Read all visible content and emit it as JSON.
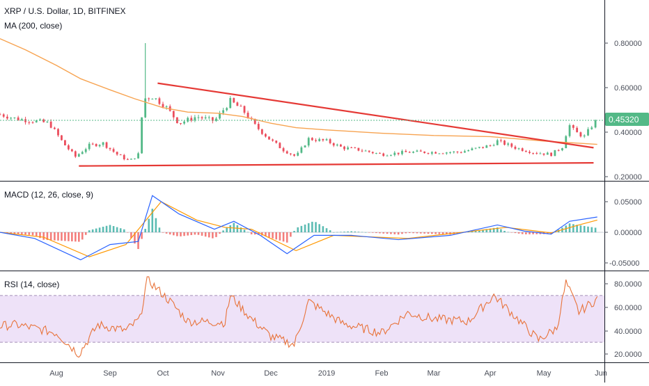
{
  "main_pane": {
    "title": "XRP / U.S. Dollar, 1D, BITFINEX",
    "indicator": "MA (200, close)",
    "price_tag": "0.45320",
    "y_ticks": [
      "0.80000",
      "0.60000",
      "0.40000",
      "0.20000"
    ]
  },
  "macd_pane": {
    "title": "MACD (12, 26, close, 9)",
    "y_ticks": [
      "0.05000",
      "0.00000",
      "-0.05000"
    ]
  },
  "rsi_pane": {
    "title": "RSI (14, close)",
    "y_ticks": [
      "80.0000",
      "60.0000",
      "40.0000",
      "20.0000"
    ]
  },
  "time_axis": {
    "labels": [
      "Aug",
      "Sep",
      "Oct",
      "Nov",
      "Dec",
      "2019",
      "Feb",
      "Mar",
      "Apr",
      "May",
      "Jun"
    ]
  },
  "colors": {
    "up": "#53b987",
    "down": "#eb4d5c",
    "ma": "#f7a350",
    "trendline": "#e53935",
    "macd_line": "#2962ff",
    "signal_line": "#ff9800",
    "hist_up": "#26a69a",
    "hist_down": "#ef5350",
    "rsi_line": "#e8733a",
    "rsi_band": "#e7d6f5",
    "price_tag_bg": "#53b987"
  },
  "chart_data": [
    {
      "type": "candlestick",
      "title": "XRP / U.S. Dollar, 1D, BITFINEX",
      "ylim": [
        0.2,
        0.85
      ],
      "x_range": [
        "2018-07-01",
        "2019-05-30"
      ],
      "price_line": 0.4532,
      "close_path": [
        {
          "x": "2018-07-01",
          "y": 0.48
        },
        {
          "x": "2018-07-10",
          "y": 0.46
        },
        {
          "x": "2018-07-20",
          "y": 0.45
        },
        {
          "x": "2018-07-28",
          "y": 0.44
        },
        {
          "x": "2018-08-05",
          "y": 0.35
        },
        {
          "x": "2018-08-12",
          "y": 0.29
        },
        {
          "x": "2018-08-20",
          "y": 0.34
        },
        {
          "x": "2018-08-28",
          "y": 0.35
        },
        {
          "x": "2018-09-05",
          "y": 0.3
        },
        {
          "x": "2018-09-12",
          "y": 0.27
        },
        {
          "x": "2018-09-17",
          "y": 0.3
        },
        {
          "x": "2018-09-20",
          "y": 0.55
        },
        {
          "x": "2018-09-25",
          "y": 0.56
        },
        {
          "x": "2018-10-02",
          "y": 0.52
        },
        {
          "x": "2018-10-10",
          "y": 0.44
        },
        {
          "x": "2018-10-20",
          "y": 0.47
        },
        {
          "x": "2018-10-30",
          "y": 0.45
        },
        {
          "x": "2018-11-08",
          "y": 0.54
        },
        {
          "x": "2018-11-15",
          "y": 0.5
        },
        {
          "x": "2018-11-22",
          "y": 0.43
        },
        {
          "x": "2018-11-30",
          "y": 0.37
        },
        {
          "x": "2018-12-08",
          "y": 0.32
        },
        {
          "x": "2018-12-15",
          "y": 0.29
        },
        {
          "x": "2018-12-22",
          "y": 0.37
        },
        {
          "x": "2019-01-01",
          "y": 0.36
        },
        {
          "x": "2019-01-10",
          "y": 0.33
        },
        {
          "x": "2019-01-20",
          "y": 0.32
        },
        {
          "x": "2019-02-01",
          "y": 0.3
        },
        {
          "x": "2019-02-15",
          "y": 0.31
        },
        {
          "x": "2019-03-01",
          "y": 0.31
        },
        {
          "x": "2019-03-15",
          "y": 0.31
        },
        {
          "x": "2019-04-01",
          "y": 0.34
        },
        {
          "x": "2019-04-05",
          "y": 0.36
        },
        {
          "x": "2019-04-15",
          "y": 0.33
        },
        {
          "x": "2019-04-25",
          "y": 0.31
        },
        {
          "x": "2019-05-05",
          "y": 0.3
        },
        {
          "x": "2019-05-12",
          "y": 0.34
        },
        {
          "x": "2019-05-14",
          "y": 0.44
        },
        {
          "x": "2019-05-18",
          "y": 0.4
        },
        {
          "x": "2019-05-23",
          "y": 0.38
        },
        {
          "x": "2019-05-28",
          "y": 0.44
        },
        {
          "x": "2019-05-30",
          "y": 0.4532
        }
      ],
      "ma200": [
        {
          "x": "2018-07-01",
          "y": 0.82
        },
        {
          "x": "2018-07-15",
          "y": 0.77
        },
        {
          "x": "2018-08-01",
          "y": 0.7
        },
        {
          "x": "2018-08-15",
          "y": 0.64
        },
        {
          "x": "2018-09-01",
          "y": 0.59
        },
        {
          "x": "2018-09-15",
          "y": 0.55
        },
        {
          "x": "2018-10-01",
          "y": 0.51
        },
        {
          "x": "2018-10-15",
          "y": 0.49
        },
        {
          "x": "2018-11-01",
          "y": 0.485
        },
        {
          "x": "2018-11-15",
          "y": 0.47
        },
        {
          "x": "2018-12-01",
          "y": 0.44
        },
        {
          "x": "2018-12-15",
          "y": 0.42
        },
        {
          "x": "2019-01-01",
          "y": 0.41
        },
        {
          "x": "2019-02-01",
          "y": 0.395
        },
        {
          "x": "2019-03-01",
          "y": 0.385
        },
        {
          "x": "2019-04-01",
          "y": 0.38
        },
        {
          "x": "2019-05-01",
          "y": 0.36
        },
        {
          "x": "2019-05-30",
          "y": 0.345
        }
      ],
      "trendlines": [
        {
          "name": "resistance",
          "points": [
            {
              "x": "2018-09-28",
              "y": 0.62
            },
            {
              "x": "2019-05-28",
              "y": 0.33
            }
          ]
        },
        {
          "name": "support",
          "points": [
            {
              "x": "2018-08-14",
              "y": 0.248
            },
            {
              "x": "2019-05-28",
              "y": 0.262
            }
          ]
        }
      ]
    },
    {
      "type": "line",
      "title": "MACD (12, 26, close, 9)",
      "ylim": [
        -0.06,
        0.08
      ],
      "series": [
        {
          "key": "macd",
          "values": [
            {
              "x": "2018-07-01",
              "y": 0.0
            },
            {
              "x": "2018-07-20",
              "y": -0.01
            },
            {
              "x": "2018-08-15",
              "y": -0.045
            },
            {
              "x": "2018-09-01",
              "y": -0.02
            },
            {
              "x": "2018-09-17",
              "y": -0.015
            },
            {
              "x": "2018-09-25",
              "y": 0.06
            },
            {
              "x": "2018-10-10",
              "y": 0.03
            },
            {
              "x": "2018-10-30",
              "y": 0.005
            },
            {
              "x": "2018-11-10",
              "y": 0.018
            },
            {
              "x": "2018-11-25",
              "y": -0.005
            },
            {
              "x": "2018-12-10",
              "y": -0.035
            },
            {
              "x": "2018-12-25",
              "y": -0.005
            },
            {
              "x": "2019-01-15",
              "y": -0.005
            },
            {
              "x": "2019-02-10",
              "y": -0.012
            },
            {
              "x": "2019-03-10",
              "y": -0.005
            },
            {
              "x": "2019-04-05",
              "y": 0.012
            },
            {
              "x": "2019-04-20",
              "y": 0.002
            },
            {
              "x": "2019-05-05",
              "y": -0.003
            },
            {
              "x": "2019-05-15",
              "y": 0.018
            },
            {
              "x": "2019-05-30",
              "y": 0.025
            }
          ]
        },
        {
          "key": "signal",
          "values": [
            {
              "x": "2018-07-01",
              "y": 0.0
            },
            {
              "x": "2018-07-25",
              "y": -0.008
            },
            {
              "x": "2018-08-20",
              "y": -0.04
            },
            {
              "x": "2018-09-10",
              "y": -0.02
            },
            {
              "x": "2018-09-30",
              "y": 0.05
            },
            {
              "x": "2018-10-20",
              "y": 0.02
            },
            {
              "x": "2018-11-05",
              "y": 0.008
            },
            {
              "x": "2018-11-20",
              "y": 0.005
            },
            {
              "x": "2018-12-15",
              "y": -0.03
            },
            {
              "x": "2019-01-05",
              "y": -0.005
            },
            {
              "x": "2019-02-15",
              "y": -0.01
            },
            {
              "x": "2019-04-10",
              "y": 0.008
            },
            {
              "x": "2019-05-05",
              "y": -0.001
            },
            {
              "x": "2019-05-20",
              "y": 0.012
            },
            {
              "x": "2019-05-30",
              "y": 0.02
            }
          ]
        }
      ]
    },
    {
      "type": "line",
      "title": "RSI (14, close)",
      "ylim": [
        15,
        88
      ],
      "bands": [
        30,
        70
      ],
      "series": [
        {
          "key": "rsi",
          "values": [
            {
              "x": "2018-07-01",
              "y": 44
            },
            {
              "x": "2018-07-10",
              "y": 45
            },
            {
              "x": "2018-07-20",
              "y": 42
            },
            {
              "x": "2018-08-01",
              "y": 38
            },
            {
              "x": "2018-08-14",
              "y": 20
            },
            {
              "x": "2018-08-25",
              "y": 45
            },
            {
              "x": "2018-09-10",
              "y": 40
            },
            {
              "x": "2018-09-18",
              "y": 50
            },
            {
              "x": "2018-09-22",
              "y": 84
            },
            {
              "x": "2018-10-05",
              "y": 65
            },
            {
              "x": "2018-10-15",
              "y": 48
            },
            {
              "x": "2018-11-05",
              "y": 47
            },
            {
              "x": "2018-11-08",
              "y": 70
            },
            {
              "x": "2018-11-20",
              "y": 50
            },
            {
              "x": "2018-12-01",
              "y": 35
            },
            {
              "x": "2018-12-14",
              "y": 28
            },
            {
              "x": "2018-12-22",
              "y": 65
            },
            {
              "x": "2019-01-10",
              "y": 46
            },
            {
              "x": "2019-02-01",
              "y": 38
            },
            {
              "x": "2019-02-15",
              "y": 55
            },
            {
              "x": "2019-03-01",
              "y": 50
            },
            {
              "x": "2019-03-20",
              "y": 48
            },
            {
              "x": "2019-04-03",
              "y": 70
            },
            {
              "x": "2019-04-15",
              "y": 52
            },
            {
              "x": "2019-04-28",
              "y": 32
            },
            {
              "x": "2019-05-08",
              "y": 42
            },
            {
              "x": "2019-05-13",
              "y": 81
            },
            {
              "x": "2019-05-20",
              "y": 56
            },
            {
              "x": "2019-05-30",
              "y": 67
            }
          ]
        }
      ]
    }
  ]
}
